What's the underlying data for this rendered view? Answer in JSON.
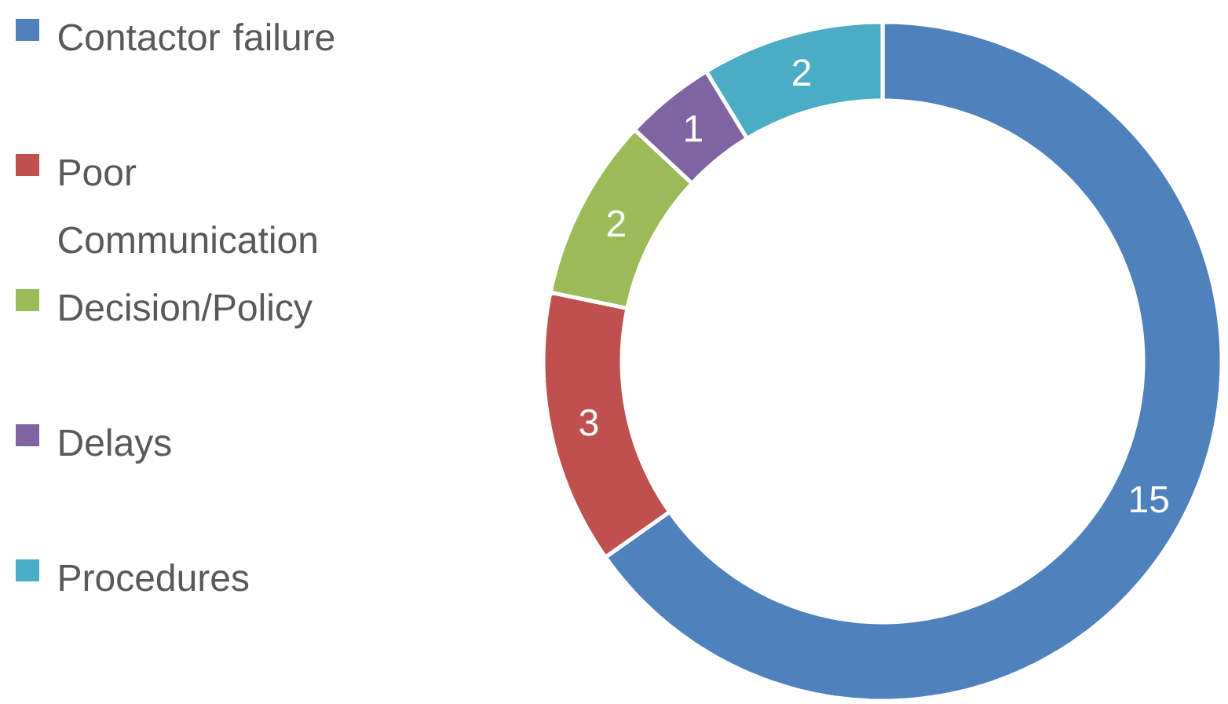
{
  "chart_data": {
    "type": "donut",
    "categories": [
      "Contactor failure",
      "Poor Communication",
      "Decision/Policy",
      "Delays",
      "Procedures"
    ],
    "values": [
      15,
      3,
      2,
      1,
      2
    ],
    "colors": [
      "#4f81bd",
      "#c0504d",
      "#9bbb59",
      "#8064a2",
      "#4bacc6"
    ],
    "data_labels": true,
    "legend": "left"
  }
}
